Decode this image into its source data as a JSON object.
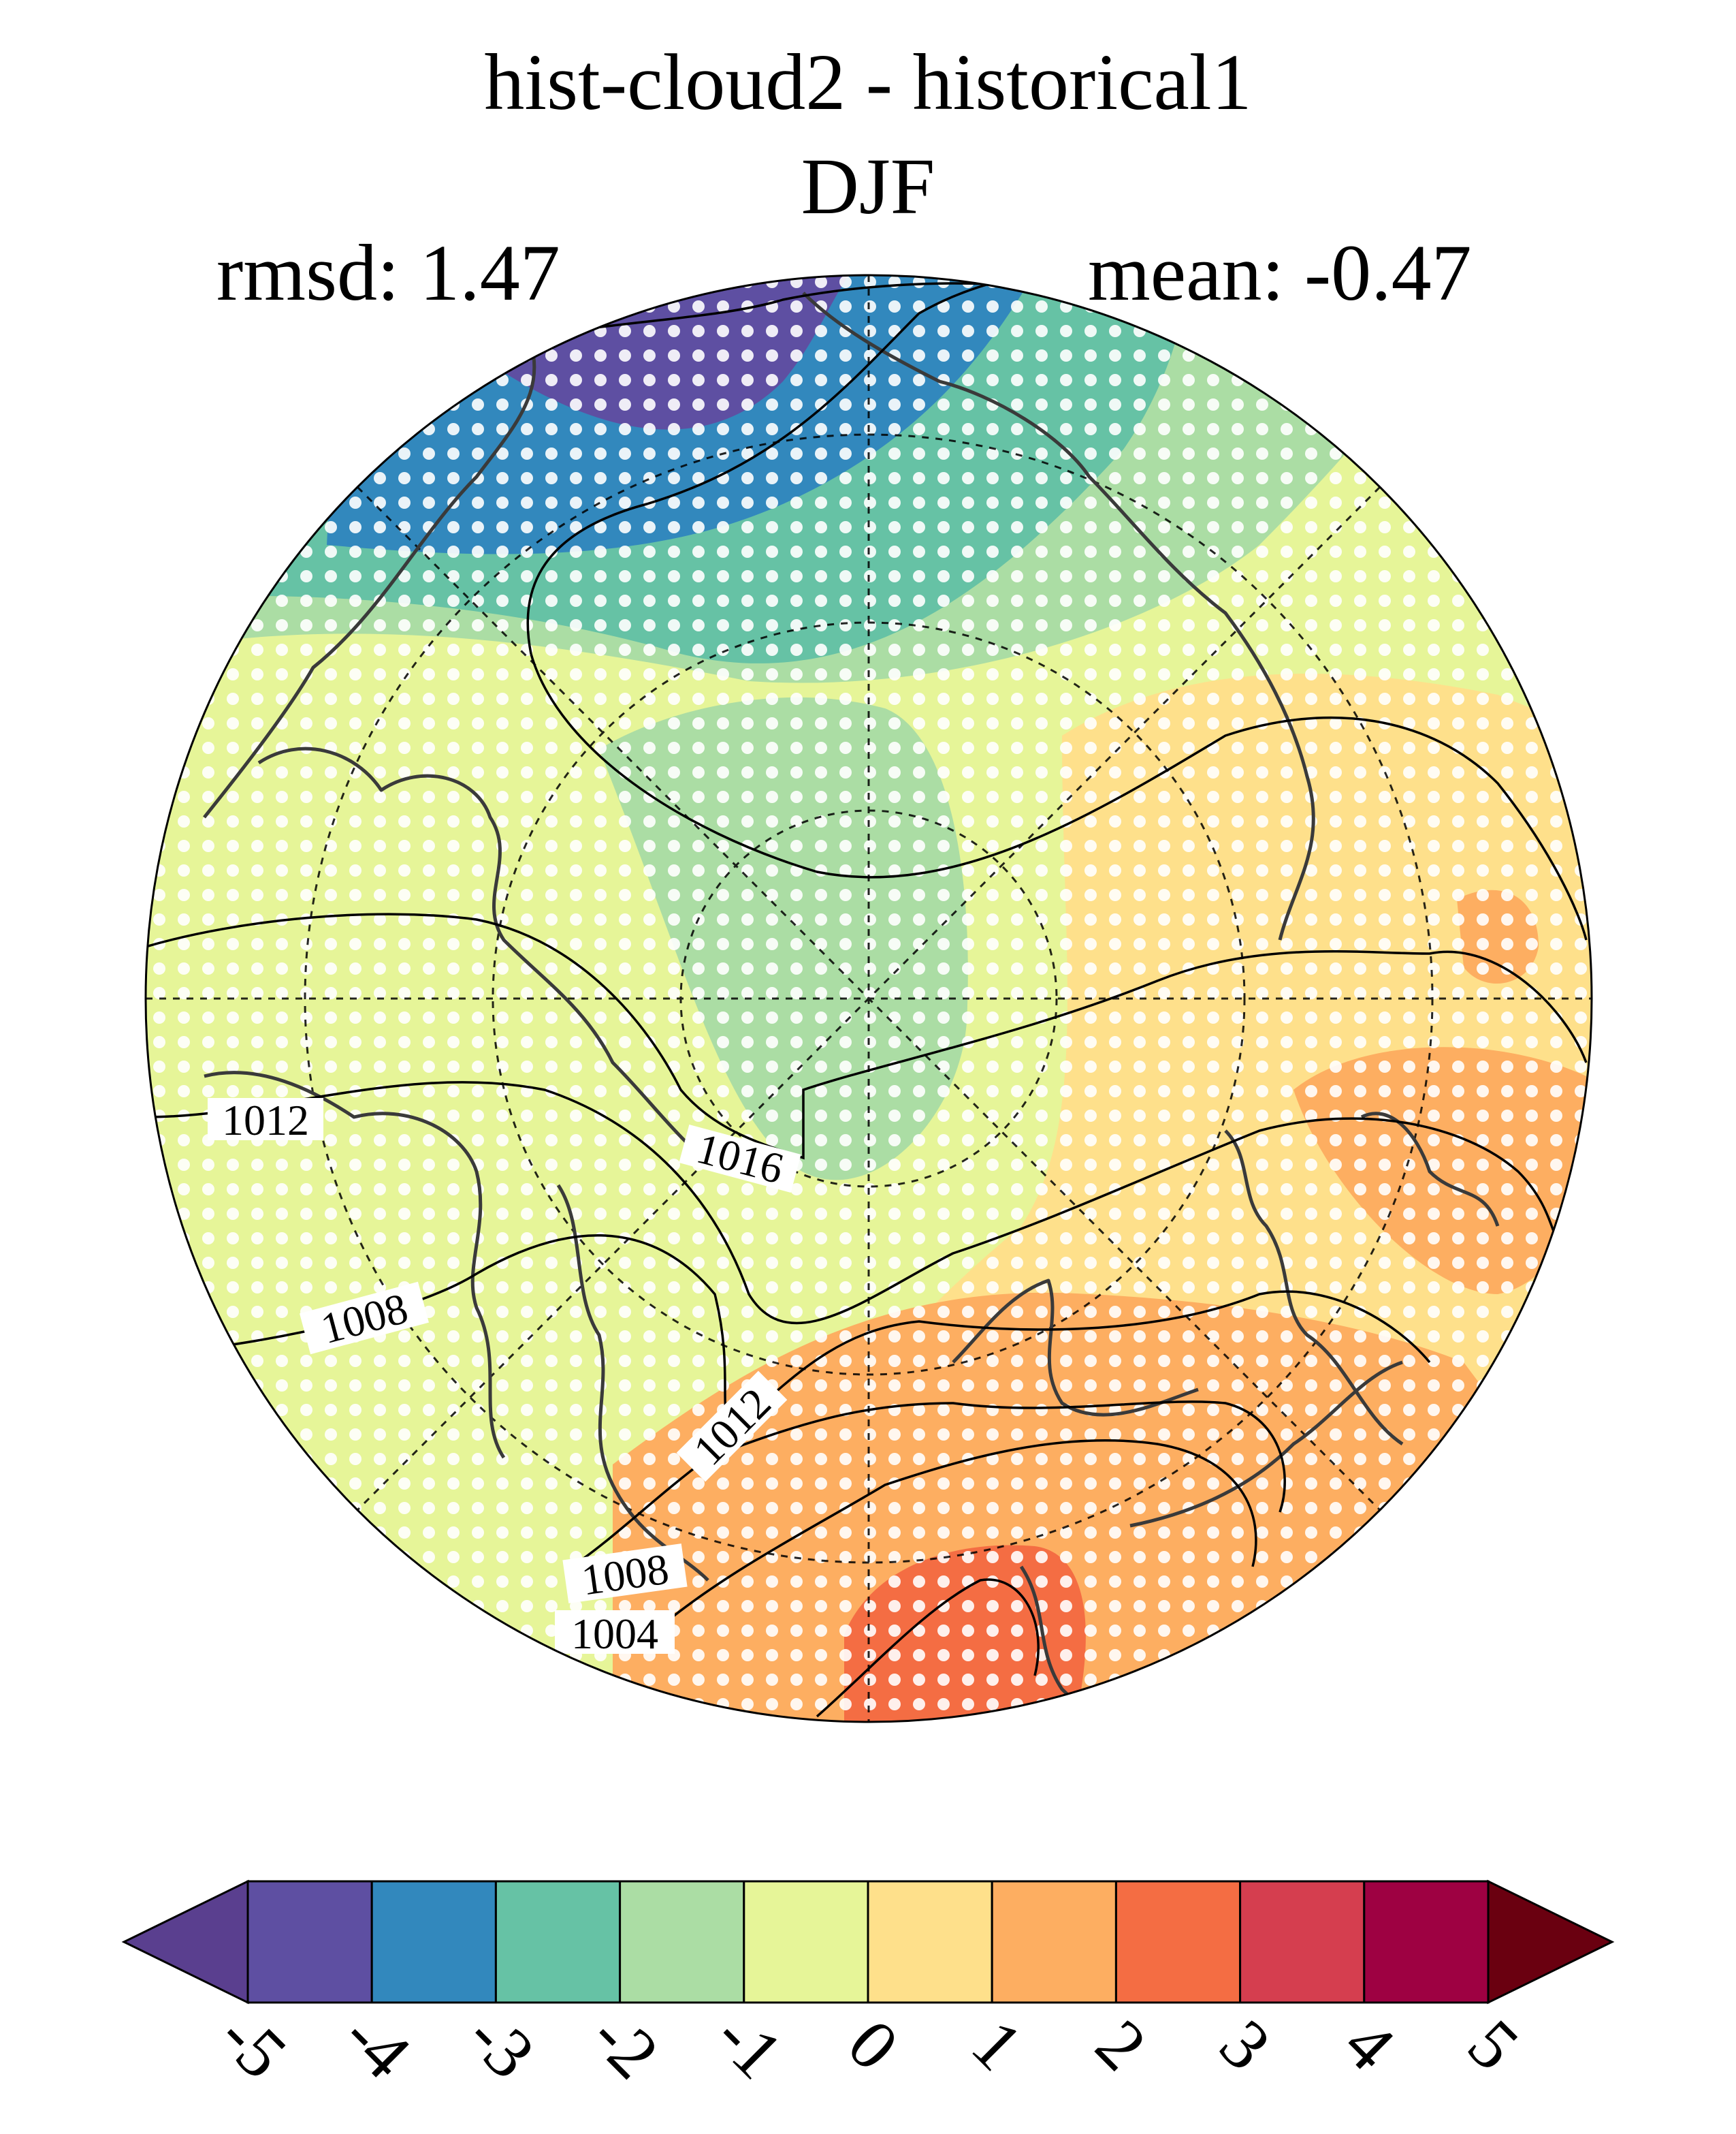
{
  "title": {
    "line1": "hist-cloud2 - historical1",
    "line2": "DJF"
  },
  "stats": {
    "rmsd": "rmsd: 1.47",
    "mean": "mean: -0.47"
  },
  "contour_labels": [
    "1016",
    "1012",
    "1012",
    "1008",
    "1008",
    "1004"
  ],
  "colorbar": {
    "ticks": [
      "-5",
      "-4",
      "-3",
      "-2",
      "-1",
      "0",
      "1",
      "2",
      "3",
      "4",
      "5"
    ],
    "colors": [
      "#5e4fa2",
      "#3288bd",
      "#66c2a5",
      "#abdda4",
      "#e6f598",
      "#fee08b",
      "#fdae61",
      "#f46d43",
      "#d53e4f",
      "#9e0142"
    ],
    "under_color": "#5a3f8f",
    "over_color": "#6a0010"
  }
}
